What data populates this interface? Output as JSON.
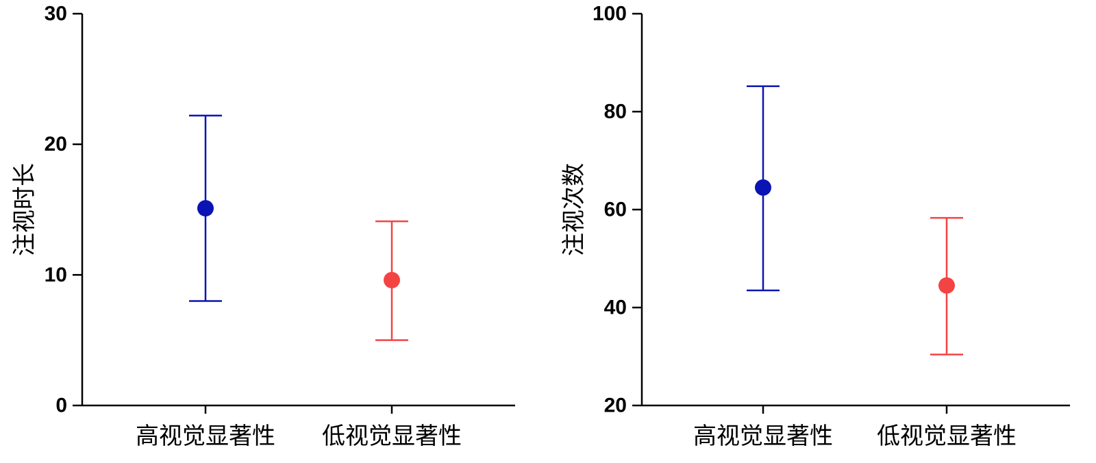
{
  "chart_data": [
    {
      "type": "scatter",
      "ylabel": "注视时长",
      "categories": [
        "高视觉显著性",
        "低视觉显著性"
      ],
      "ylim": [
        0,
        30
      ],
      "yticks": [
        0,
        10,
        20,
        30
      ],
      "series": [
        {
          "category": "高视觉显著性",
          "mean": 15.1,
          "upper": 22.2,
          "lower": 8.0,
          "color": "#0a14b4"
        },
        {
          "category": "低视觉显著性",
          "mean": 9.6,
          "upper": 14.1,
          "lower": 5.0,
          "color": "#f44343"
        }
      ]
    },
    {
      "type": "scatter",
      "ylabel": "注视次数",
      "categories": [
        "高视觉显著性",
        "低视觉显著性"
      ],
      "ylim": [
        20,
        100
      ],
      "yticks": [
        20,
        40,
        60,
        80,
        100
      ],
      "series": [
        {
          "category": "高视觉显著性",
          "mean": 64.5,
          "upper": 85.2,
          "lower": 43.5,
          "color": "#0a14b4"
        },
        {
          "category": "低视觉显著性",
          "mean": 44.5,
          "upper": 58.3,
          "lower": 30.4,
          "color": "#f44343"
        }
      ]
    }
  ]
}
